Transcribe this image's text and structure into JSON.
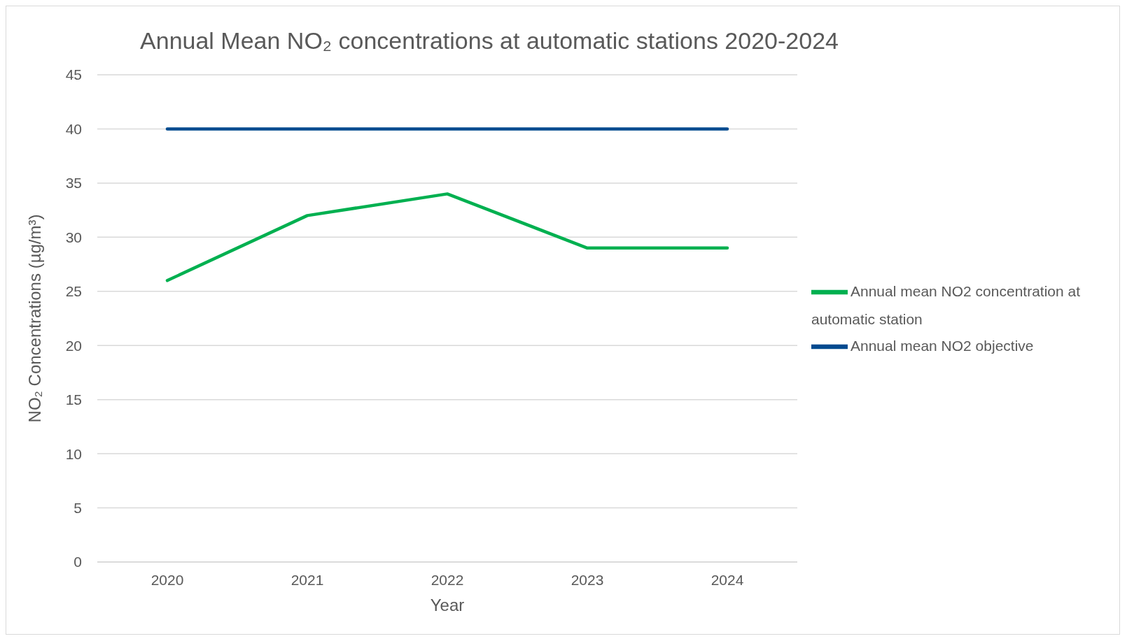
{
  "chart_data": {
    "type": "line",
    "title": "Annual Mean NO₂ concentrations at automatic stations 2020-2024",
    "xlabel": "Year",
    "ylabel": "NO₂ Concentrations (µg/m³)",
    "categories": [
      "2020",
      "2021",
      "2022",
      "2023",
      "2024"
    ],
    "series": [
      {
        "name": "Annual mean NO2 concentration at automatic station",
        "color": "#00b050",
        "values": [
          26,
          32,
          34,
          29,
          29
        ]
      },
      {
        "name": "Annual mean NO2 objective",
        "color": "#004a8f",
        "values": [
          40,
          40,
          40,
          40,
          40
        ]
      }
    ],
    "ylim": [
      0,
      45
    ],
    "yticks": [
      0,
      5,
      10,
      15,
      20,
      25,
      30,
      35,
      40,
      45
    ],
    "grid": "y",
    "legend": "right",
    "marker": "none",
    "line_style": "solid"
  }
}
